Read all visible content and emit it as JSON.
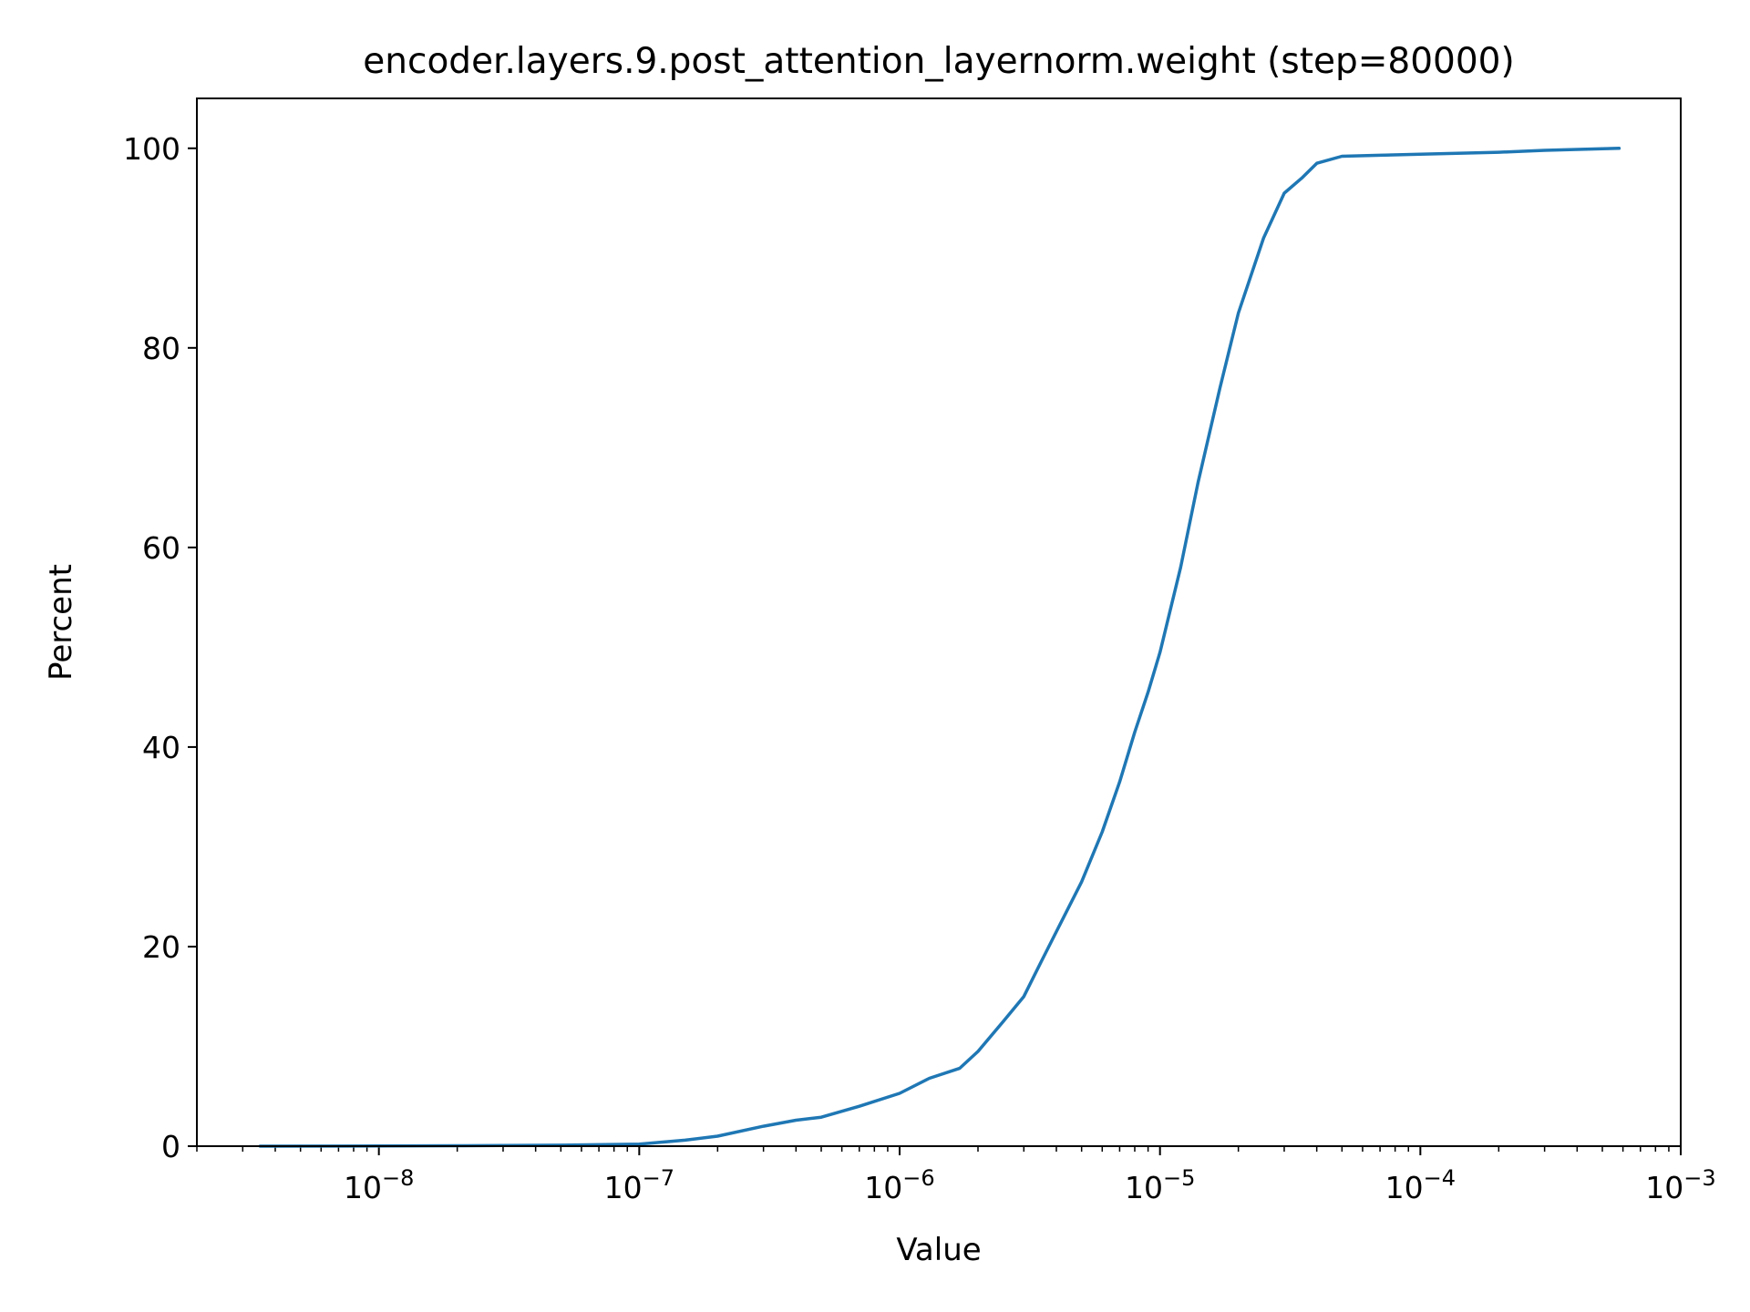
{
  "chart_data": {
    "type": "line",
    "title": "encoder.layers.9.post_attention_layernorm.weight (step=80000)",
    "xlabel": "Value",
    "ylabel": "Percent",
    "xscale": "log",
    "xlim": [
      2e-09,
      0.001
    ],
    "ylim": [
      0,
      105
    ],
    "grid": false,
    "legend": "none",
    "line_color": "#1f77b4",
    "x_ticks": [
      {
        "base": "10",
        "exp": "−8",
        "value": 1e-08
      },
      {
        "base": "10",
        "exp": "−7",
        "value": 1e-07
      },
      {
        "base": "10",
        "exp": "−6",
        "value": 1e-06
      },
      {
        "base": "10",
        "exp": "−5",
        "value": 1e-05
      },
      {
        "base": "10",
        "exp": "−4",
        "value": 0.0001
      },
      {
        "base": "10",
        "exp": "−3",
        "value": 0.001
      }
    ],
    "y_ticks": [
      {
        "label": "0",
        "value": 0
      },
      {
        "label": "20",
        "value": 20
      },
      {
        "label": "40",
        "value": 40
      },
      {
        "label": "60",
        "value": 60
      },
      {
        "label": "80",
        "value": 80
      },
      {
        "label": "100",
        "value": 100
      }
    ],
    "series": [
      {
        "x": [
          3.5e-09,
          1e-08,
          2e-08,
          5e-08,
          1e-07,
          1.5e-07,
          2e-07,
          3e-07,
          4e-07,
          5e-07,
          7e-07,
          1e-06,
          1.3e-06,
          1.7e-06,
          2e-06,
          2.5e-06,
          3e-06,
          3.5e-06,
          4e-06,
          5e-06,
          6e-06,
          7e-06,
          8e-06,
          9e-06,
          1e-05,
          1.2e-05,
          1.4e-05,
          1.7e-05,
          2e-05,
          2.5e-05,
          3e-05,
          3.5e-05,
          4e-05,
          5e-05,
          7e-05,
          0.0001,
          0.0002,
          0.0003,
          0.00058
        ],
        "y": [
          0,
          0.02,
          0.05,
          0.1,
          0.2,
          0.6,
          1.0,
          2.0,
          2.6,
          2.9,
          4.0,
          5.3,
          6.8,
          7.8,
          9.5,
          12.5,
          15.0,
          18.5,
          21.5,
          26.5,
          31.5,
          36.5,
          41.5,
          45.5,
          49.5,
          58.0,
          66.5,
          76.0,
          83.5,
          91.0,
          95.5,
          97.0,
          98.5,
          99.2,
          99.3,
          99.4,
          99.6,
          99.8,
          100
        ]
      }
    ]
  }
}
